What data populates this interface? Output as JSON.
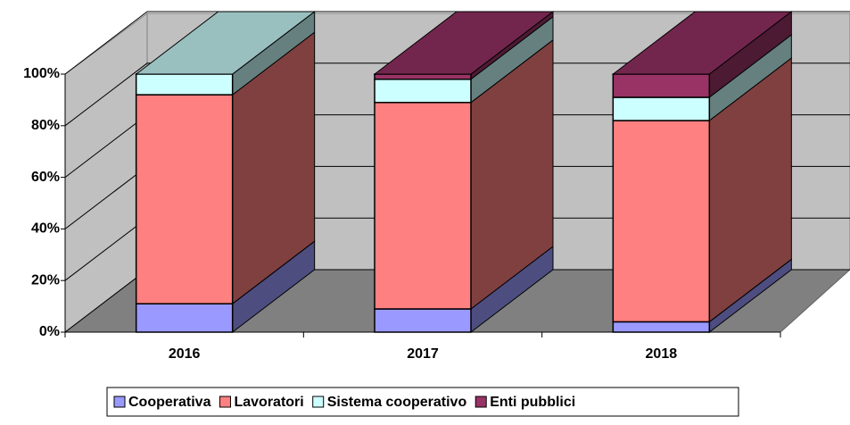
{
  "chart_data": {
    "type": "bar3d_stacked",
    "categories": [
      "2016",
      "2017",
      "2018"
    ],
    "series": [
      {
        "name": "Cooperativa",
        "color": "#9999ff",
        "values": [
          11,
          9,
          4
        ]
      },
      {
        "name": "Lavoratori",
        "color": "#ff8080",
        "values": [
          81,
          80,
          78
        ]
      },
      {
        "name": "Sistema cooperativo",
        "color": "#ccffff",
        "values": [
          8,
          9,
          9
        ]
      },
      {
        "name": "Enti pubblici",
        "color": "#993366",
        "values": [
          0,
          2,
          9
        ]
      }
    ],
    "ylim": [
      0,
      100
    ],
    "yticks": [
      {
        "value": 0,
        "label": "0%"
      },
      {
        "value": 20,
        "label": "20%"
      },
      {
        "value": 40,
        "label": "40%"
      },
      {
        "value": 60,
        "label": "60%"
      },
      {
        "value": 80,
        "label": "80%"
      },
      {
        "value": 100,
        "label": "100%"
      }
    ],
    "grid": true
  }
}
